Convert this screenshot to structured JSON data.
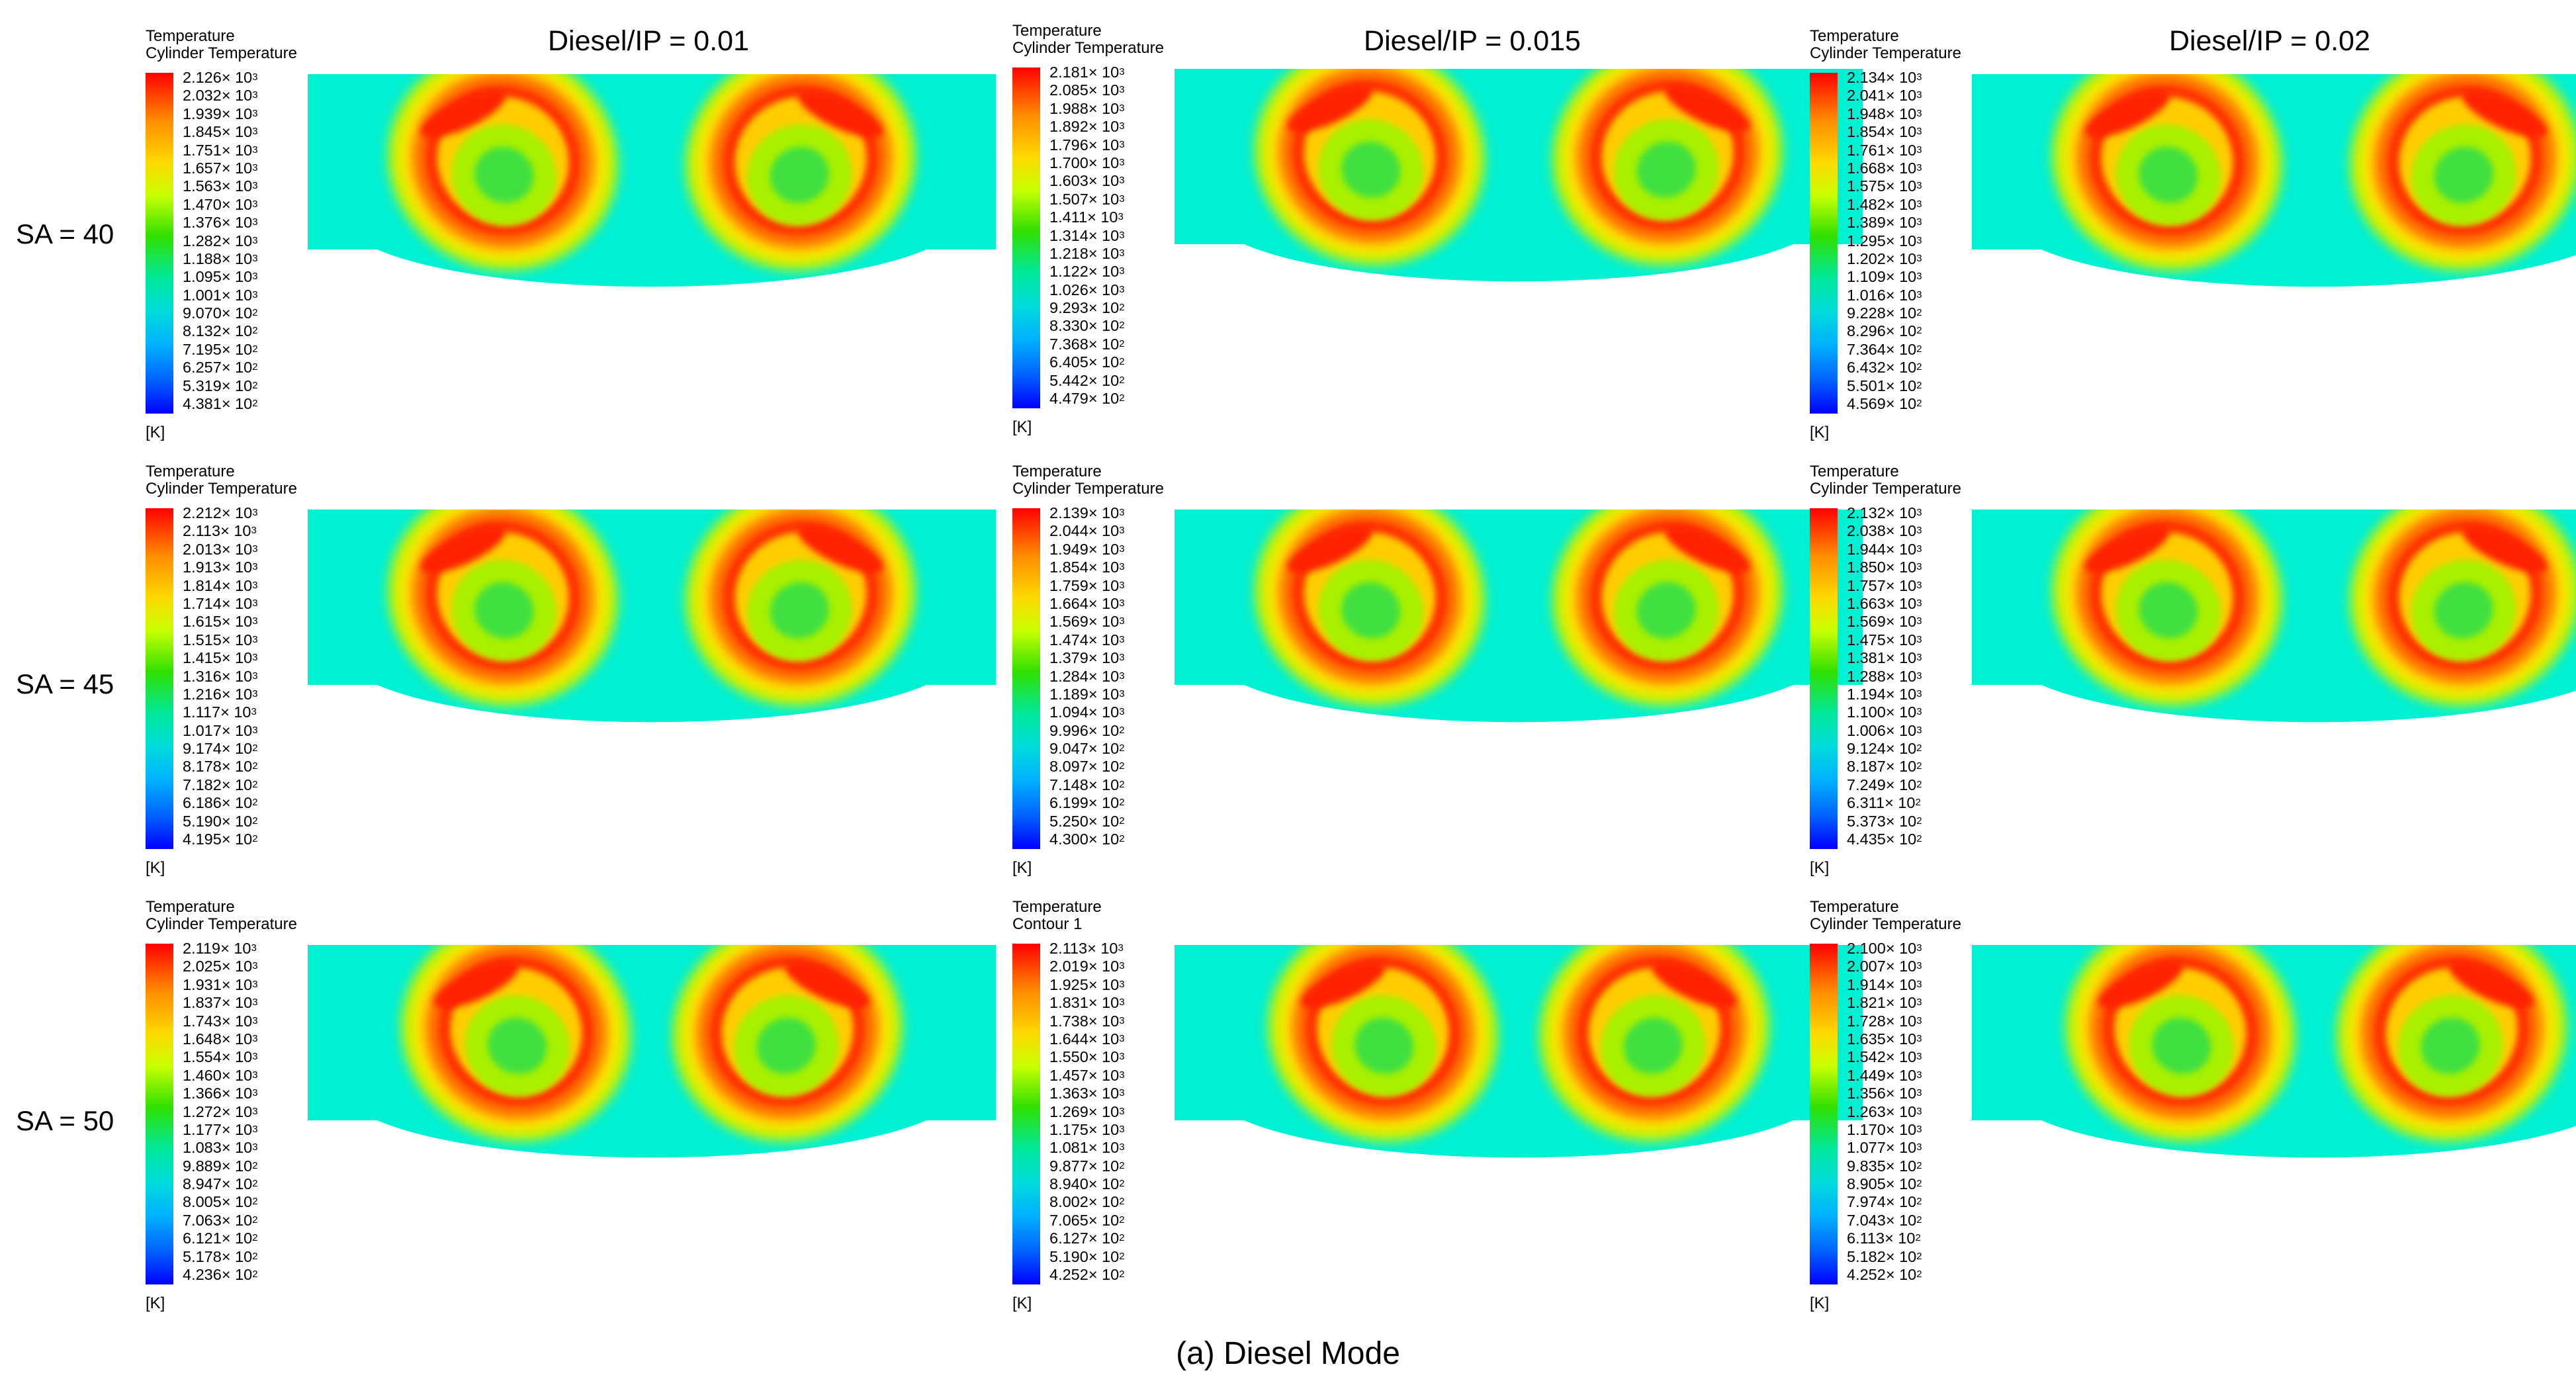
{
  "column_headers": [
    "Diesel/IP = 0.01",
    "Diesel/IP = 0.015",
    "Diesel/IP = 0.02"
  ],
  "row_labels": [
    "SA = 40",
    "SA = 45",
    "SA = 50"
  ],
  "legend_unit": "[K]",
  "legend_base": "10",
  "panels": [
    {
      "title": "Temperature",
      "subtitle": "Cylinder Temperature",
      "ticks": [
        [
          "2.126",
          "3"
        ],
        [
          "2.032",
          "3"
        ],
        [
          "1.939",
          "3"
        ],
        [
          "1.845",
          "3"
        ],
        [
          "1.751",
          "3"
        ],
        [
          "1.657",
          "3"
        ],
        [
          "1.563",
          "3"
        ],
        [
          "1.470",
          "3"
        ],
        [
          "1.376",
          "3"
        ],
        [
          "1.282",
          "3"
        ],
        [
          "1.188",
          "3"
        ],
        [
          "1.095",
          "3"
        ],
        [
          "1.001",
          "3"
        ],
        [
          "9.070",
          "2"
        ],
        [
          "8.132",
          "2"
        ],
        [
          "7.195",
          "2"
        ],
        [
          "6.257",
          "2"
        ],
        [
          "5.319",
          "2"
        ],
        [
          "4.381",
          "2"
        ]
      ]
    },
    {
      "title": "Temperature",
      "subtitle": "Cylinder Temperature",
      "ticks": [
        [
          "2.181",
          "3"
        ],
        [
          "2.085",
          "3"
        ],
        [
          "1.988",
          "3"
        ],
        [
          "1.892",
          "3"
        ],
        [
          "1.796",
          "3"
        ],
        [
          "1.700",
          "3"
        ],
        [
          "1.603",
          "3"
        ],
        [
          "1.507",
          "3"
        ],
        [
          "1.411",
          "3"
        ],
        [
          "1.314",
          "3"
        ],
        [
          "1.218",
          "3"
        ],
        [
          "1.122",
          "3"
        ],
        [
          "1.026",
          "3"
        ],
        [
          "9.293",
          "2"
        ],
        [
          "8.330",
          "2"
        ],
        [
          "7.368",
          "2"
        ],
        [
          "6.405",
          "2"
        ],
        [
          "5.442",
          "2"
        ],
        [
          "4.479",
          "2"
        ]
      ]
    },
    {
      "title": "Temperature",
      "subtitle": "Cylinder Temperature",
      "ticks": [
        [
          "2.134",
          "3"
        ],
        [
          "2.041",
          "3"
        ],
        [
          "1.948",
          "3"
        ],
        [
          "1.854",
          "3"
        ],
        [
          "1.761",
          "3"
        ],
        [
          "1.668",
          "3"
        ],
        [
          "1.575",
          "3"
        ],
        [
          "1.482",
          "3"
        ],
        [
          "1.389",
          "3"
        ],
        [
          "1.295",
          "3"
        ],
        [
          "1.202",
          "3"
        ],
        [
          "1.109",
          "3"
        ],
        [
          "1.016",
          "3"
        ],
        [
          "9.228",
          "2"
        ],
        [
          "8.296",
          "2"
        ],
        [
          "7.364",
          "2"
        ],
        [
          "6.432",
          "2"
        ],
        [
          "5.501",
          "2"
        ],
        [
          "4.569",
          "2"
        ]
      ]
    },
    {
      "title": "Temperature",
      "subtitle": "Cylinder Temperature",
      "ticks": [
        [
          "2.212",
          "3"
        ],
        [
          "2.113",
          "3"
        ],
        [
          "2.013",
          "3"
        ],
        [
          "1.913",
          "3"
        ],
        [
          "1.814",
          "3"
        ],
        [
          "1.714",
          "3"
        ],
        [
          "1.615",
          "3"
        ],
        [
          "1.515",
          "3"
        ],
        [
          "1.415",
          "3"
        ],
        [
          "1.316",
          "3"
        ],
        [
          "1.216",
          "3"
        ],
        [
          "1.117",
          "3"
        ],
        [
          "1.017",
          "3"
        ],
        [
          "9.174",
          "2"
        ],
        [
          "8.178",
          "2"
        ],
        [
          "7.182",
          "2"
        ],
        [
          "6.186",
          "2"
        ],
        [
          "5.190",
          "2"
        ],
        [
          "4.195",
          "2"
        ]
      ]
    },
    {
      "title": "Temperature",
      "subtitle": "Cylinder Temperature",
      "ticks": [
        [
          "2.139",
          "3"
        ],
        [
          "2.044",
          "3"
        ],
        [
          "1.949",
          "3"
        ],
        [
          "1.854",
          "3"
        ],
        [
          "1.759",
          "3"
        ],
        [
          "1.664",
          "3"
        ],
        [
          "1.569",
          "3"
        ],
        [
          "1.474",
          "3"
        ],
        [
          "1.379",
          "3"
        ],
        [
          "1.284",
          "3"
        ],
        [
          "1.189",
          "3"
        ],
        [
          "1.094",
          "3"
        ],
        [
          "9.996",
          "2"
        ],
        [
          "9.047",
          "2"
        ],
        [
          "8.097",
          "2"
        ],
        [
          "7.148",
          "2"
        ],
        [
          "6.199",
          "2"
        ],
        [
          "5.250",
          "2"
        ],
        [
          "4.300",
          "2"
        ]
      ]
    },
    {
      "title": "Temperature",
      "subtitle": "Cylinder Temperature",
      "ticks": [
        [
          "2.132",
          "3"
        ],
        [
          "2.038",
          "3"
        ],
        [
          "1.944",
          "3"
        ],
        [
          "1.850",
          "3"
        ],
        [
          "1.757",
          "3"
        ],
        [
          "1.663",
          "3"
        ],
        [
          "1.569",
          "3"
        ],
        [
          "1.475",
          "3"
        ],
        [
          "1.381",
          "3"
        ],
        [
          "1.288",
          "3"
        ],
        [
          "1.194",
          "3"
        ],
        [
          "1.100",
          "3"
        ],
        [
          "1.006",
          "3"
        ],
        [
          "9.124",
          "2"
        ],
        [
          "8.187",
          "2"
        ],
        [
          "7.249",
          "2"
        ],
        [
          "6.311",
          "2"
        ],
        [
          "5.373",
          "2"
        ],
        [
          "4.435",
          "2"
        ]
      ]
    },
    {
      "title": "Temperature",
      "subtitle": "Cylinder Temperature",
      "ticks": [
        [
          "2.119",
          "3"
        ],
        [
          "2.025",
          "3"
        ],
        [
          "1.931",
          "3"
        ],
        [
          "1.837",
          "3"
        ],
        [
          "1.743",
          "3"
        ],
        [
          "1.648",
          "3"
        ],
        [
          "1.554",
          "3"
        ],
        [
          "1.460",
          "3"
        ],
        [
          "1.366",
          "3"
        ],
        [
          "1.272",
          "3"
        ],
        [
          "1.177",
          "3"
        ],
        [
          "1.083",
          "3"
        ],
        [
          "9.889",
          "2"
        ],
        [
          "8.947",
          "2"
        ],
        [
          "8.005",
          "2"
        ],
        [
          "7.063",
          "2"
        ],
        [
          "6.121",
          "2"
        ],
        [
          "5.178",
          "2"
        ],
        [
          "4.236",
          "2"
        ]
      ]
    },
    {
      "title": "Temperature",
      "subtitle": "Contour 1",
      "ticks": [
        [
          "2.113",
          "3"
        ],
        [
          "2.019",
          "3"
        ],
        [
          "1.925",
          "3"
        ],
        [
          "1.831",
          "3"
        ],
        [
          "1.738",
          "3"
        ],
        [
          "1.644",
          "3"
        ],
        [
          "1.550",
          "3"
        ],
        [
          "1.457",
          "3"
        ],
        [
          "1.363",
          "3"
        ],
        [
          "1.269",
          "3"
        ],
        [
          "1.175",
          "3"
        ],
        [
          "1.081",
          "3"
        ],
        [
          "9.877",
          "2"
        ],
        [
          "8.940",
          "2"
        ],
        [
          "8.002",
          "2"
        ],
        [
          "7.065",
          "2"
        ],
        [
          "6.127",
          "2"
        ],
        [
          "5.190",
          "2"
        ],
        [
          "4.252",
          "2"
        ]
      ]
    },
    {
      "title": "Temperature",
      "subtitle": "Cylinder Temperature",
      "ticks": [
        [
          "2.100",
          "3"
        ],
        [
          "2.007",
          "3"
        ],
        [
          "1.914",
          "3"
        ],
        [
          "1.821",
          "3"
        ],
        [
          "1.728",
          "3"
        ],
        [
          "1.635",
          "3"
        ],
        [
          "1.542",
          "3"
        ],
        [
          "1.449",
          "3"
        ],
        [
          "1.356",
          "3"
        ],
        [
          "1.263",
          "3"
        ],
        [
          "1.170",
          "3"
        ],
        [
          "1.077",
          "3"
        ],
        [
          "9.835",
          "2"
        ],
        [
          "8.905",
          "2"
        ],
        [
          "7.974",
          "2"
        ],
        [
          "7.043",
          "2"
        ],
        [
          "6.113",
          "2"
        ],
        [
          "5.182",
          "2"
        ],
        [
          "4.252",
          "2"
        ]
      ]
    }
  ],
  "caption": "(a) Diesel Mode"
}
